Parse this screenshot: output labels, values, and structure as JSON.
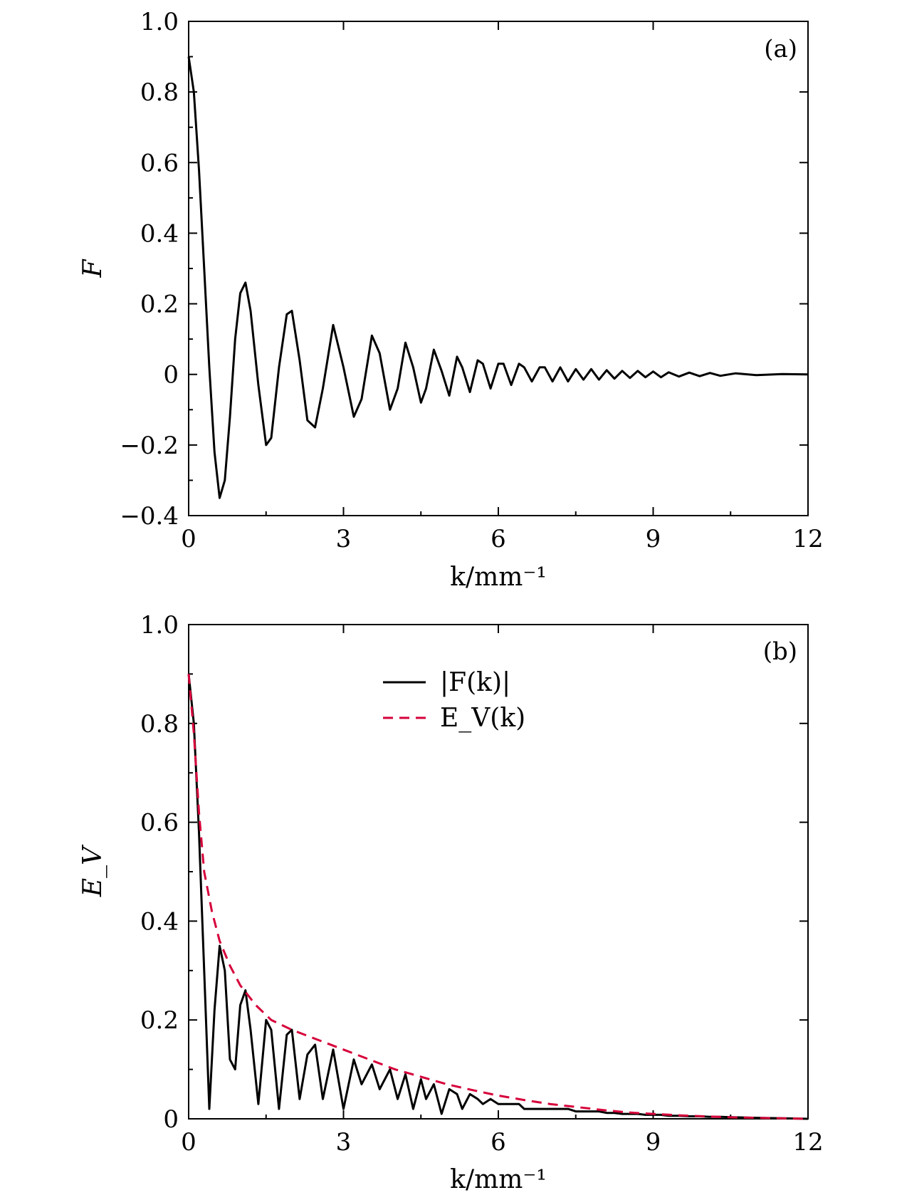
{
  "chart_data": [
    {
      "type": "line",
      "panel_label": "(a)",
      "xlabel": "k/mm⁻¹",
      "ylabel": "F",
      "xlim": [
        0,
        12
      ],
      "ylim": [
        -0.4,
        1.0
      ],
      "xticks": [
        0,
        3,
        6,
        9,
        12
      ],
      "xtick_labels": [
        "0",
        "3",
        "6",
        "9",
        "12"
      ],
      "yticks": [
        -0.4,
        -0.2,
        0,
        0.2,
        0.4,
        0.6,
        0.8,
        1.0
      ],
      "ytick_labels": [
        "−0.4",
        "−0.2",
        "0",
        "0.2",
        "0.4",
        "0.6",
        "0.8",
        "1.0"
      ],
      "grid": false,
      "legend": null,
      "series": [
        {
          "color": "#000000",
          "style": "solid",
          "x": [
            0,
            0.1,
            0.2,
            0.3,
            0.4,
            0.5,
            0.6,
            0.7,
            0.8,
            0.9,
            1.0,
            1.1,
            1.2,
            1.35,
            1.5,
            1.6,
            1.75,
            1.9,
            2.0,
            2.15,
            2.3,
            2.45,
            2.6,
            2.8,
            3.0,
            3.2,
            3.35,
            3.55,
            3.7,
            3.9,
            4.05,
            4.2,
            4.35,
            4.5,
            4.6,
            4.75,
            4.9,
            5.05,
            5.2,
            5.3,
            5.45,
            5.6,
            5.7,
            5.85,
            6.0,
            6.1,
            6.25,
            6.4,
            6.5,
            6.65,
            6.8,
            6.9,
            7.05,
            7.2,
            7.35,
            7.5,
            7.65,
            7.8,
            7.95,
            8.1,
            8.25,
            8.4,
            8.55,
            8.7,
            8.85,
            9.0,
            9.15,
            9.3,
            9.5,
            9.7,
            9.9,
            10.1,
            10.3,
            10.6,
            11.0,
            11.5,
            12.0
          ],
          "y": [
            0.9,
            0.8,
            0.58,
            0.3,
            0.02,
            -0.22,
            -0.35,
            -0.3,
            -0.12,
            0.1,
            0.23,
            0.26,
            0.18,
            -0.03,
            -0.2,
            -0.18,
            0.02,
            0.17,
            0.18,
            0.04,
            -0.13,
            -0.15,
            -0.04,
            0.14,
            0.02,
            -0.12,
            -0.07,
            0.11,
            0.06,
            -0.1,
            -0.04,
            0.09,
            0.02,
            -0.08,
            -0.04,
            0.07,
            0.01,
            -0.06,
            0.05,
            0.02,
            -0.05,
            0.04,
            0.03,
            -0.04,
            0.03,
            0.03,
            -0.03,
            0.03,
            0.02,
            -0.02,
            0.02,
            0.02,
            -0.02,
            0.02,
            -0.02,
            0.015,
            -0.015,
            0.015,
            -0.015,
            0.012,
            -0.012,
            0.01,
            -0.01,
            0.01,
            -0.008,
            0.008,
            -0.008,
            0.006,
            -0.006,
            0.005,
            -0.005,
            0.004,
            -0.004,
            0.003,
            -0.002,
            0.001,
            0.0
          ]
        }
      ]
    },
    {
      "type": "line",
      "panel_label": "(b)",
      "xlabel": "k/mm⁻¹",
      "ylabel": "E_V",
      "xlim": [
        0,
        12
      ],
      "ylim": [
        0,
        1.0
      ],
      "xticks": [
        0,
        3,
        6,
        9,
        12
      ],
      "xtick_labels": [
        "0",
        "3",
        "6",
        "9",
        "12"
      ],
      "yticks": [
        0,
        0.2,
        0.4,
        0.6,
        0.8,
        1.0
      ],
      "ytick_labels": [
        "0",
        "0.2",
        "0.4",
        "0.6",
        "0.8",
        "1.0"
      ],
      "grid": false,
      "legend": "top-center",
      "series": [
        {
          "name": "|F(k)|",
          "color": "#000000",
          "style": "solid",
          "x": [
            0,
            0.1,
            0.2,
            0.3,
            0.4,
            0.5,
            0.6,
            0.7,
            0.8,
            0.9,
            1.0,
            1.1,
            1.2,
            1.35,
            1.5,
            1.6,
            1.75,
            1.9,
            2.0,
            2.15,
            2.3,
            2.45,
            2.6,
            2.8,
            3.0,
            3.2,
            3.35,
            3.55,
            3.7,
            3.9,
            4.05,
            4.2,
            4.35,
            4.5,
            4.6,
            4.75,
            4.9,
            5.05,
            5.2,
            5.3,
            5.45,
            5.6,
            5.7,
            5.85,
            6.0,
            6.1,
            6.25,
            6.4,
            6.5,
            6.65,
            6.8,
            6.9,
            7.05,
            7.2,
            7.35,
            7.5,
            7.65,
            7.8,
            7.95,
            8.1,
            8.25,
            8.4,
            8.55,
            8.7,
            8.85,
            9.0,
            9.15,
            9.3,
            9.5,
            9.7,
            9.9,
            10.1,
            10.3,
            10.6,
            11.0,
            11.5,
            12.0
          ],
          "y": [
            0.9,
            0.8,
            0.58,
            0.3,
            0.02,
            0.22,
            0.35,
            0.3,
            0.12,
            0.1,
            0.23,
            0.26,
            0.18,
            0.03,
            0.2,
            0.18,
            0.02,
            0.17,
            0.18,
            0.04,
            0.13,
            0.15,
            0.04,
            0.14,
            0.02,
            0.12,
            0.07,
            0.11,
            0.06,
            0.1,
            0.04,
            0.09,
            0.02,
            0.08,
            0.04,
            0.07,
            0.01,
            0.06,
            0.05,
            0.02,
            0.05,
            0.04,
            0.03,
            0.04,
            0.03,
            0.03,
            0.03,
            0.03,
            0.02,
            0.02,
            0.02,
            0.02,
            0.02,
            0.02,
            0.02,
            0.015,
            0.015,
            0.015,
            0.015,
            0.012,
            0.012,
            0.01,
            0.01,
            0.01,
            0.008,
            0.008,
            0.008,
            0.006,
            0.006,
            0.005,
            0.005,
            0.004,
            0.004,
            0.003,
            0.002,
            0.001,
            0.0
          ]
        },
        {
          "name": "E_V(k)",
          "color": "#d6003a",
          "style": "dashed",
          "x": [
            0,
            0.1,
            0.2,
            0.3,
            0.45,
            0.6,
            0.8,
            1.0,
            1.3,
            1.6,
            2.0,
            2.5,
            3.0,
            3.5,
            4.0,
            4.5,
            5.0,
            5.5,
            6.0,
            6.5,
            7.0,
            7.5,
            8.0,
            8.5,
            9.0,
            9.5,
            10.0,
            10.5,
            11.0,
            12.0
          ],
          "y": [
            0.9,
            0.78,
            0.62,
            0.5,
            0.42,
            0.36,
            0.31,
            0.27,
            0.23,
            0.2,
            0.18,
            0.16,
            0.14,
            0.12,
            0.1,
            0.085,
            0.07,
            0.058,
            0.047,
            0.038,
            0.03,
            0.024,
            0.018,
            0.013,
            0.01,
            0.007,
            0.005,
            0.003,
            0.002,
            0.0
          ]
        }
      ]
    }
  ]
}
